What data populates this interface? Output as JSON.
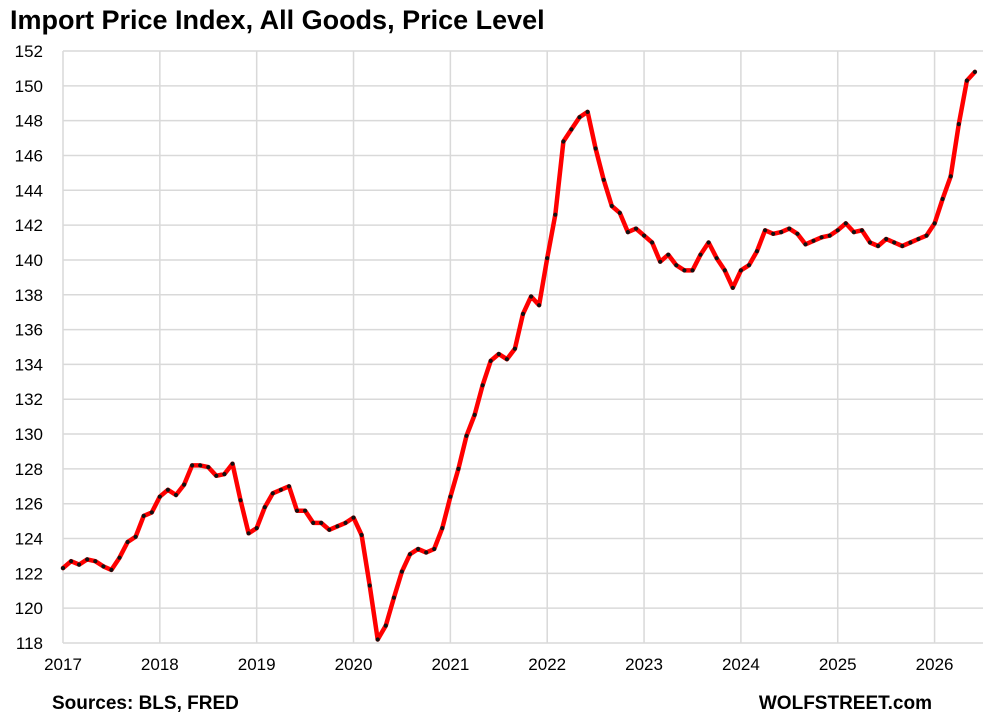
{
  "chart_data": {
    "type": "line",
    "title": "Import Price Index, All Goods, Price Level",
    "xlabel": "",
    "ylabel": "",
    "xlim": [
      2017,
      2026.5
    ],
    "ylim": [
      118,
      152
    ],
    "yticks": [
      118,
      120,
      122,
      124,
      126,
      128,
      130,
      132,
      134,
      136,
      138,
      140,
      142,
      144,
      146,
      148,
      150,
      152
    ],
    "xticks": [
      "2017",
      "2018",
      "2019",
      "2020",
      "2021",
      "2022",
      "2023",
      "2024",
      "2025",
      "2026"
    ],
    "grid": true,
    "legend": "none",
    "series": [
      {
        "start": "2017-01",
        "frequency": "monthly",
        "values": [
          122.3,
          122.7,
          122.5,
          122.8,
          122.7,
          122.4,
          122.2,
          122.9,
          123.8,
          124.1,
          125.3,
          125.5,
          126.4,
          126.8,
          126.5,
          127.1,
          128.2,
          128.2,
          128.1,
          127.6,
          127.7,
          128.3,
          126.2,
          124.3,
          124.6,
          125.8,
          126.6,
          126.8,
          127.0,
          125.6,
          125.6,
          124.9,
          124.9,
          124.5,
          124.7,
          124.9,
          125.2,
          124.2,
          121.3,
          118.2,
          119.0,
          120.6,
          122.1,
          123.1,
          123.4,
          123.2,
          123.4,
          124.6,
          126.4,
          128.0,
          129.9,
          131.1,
          132.8,
          134.2,
          134.6,
          134.3,
          134.9,
          136.9,
          137.9,
          137.4,
          140.1,
          142.6,
          146.8,
          147.5,
          148.2,
          148.5,
          146.4,
          144.6,
          143.1,
          142.7,
          141.6,
          141.8,
          141.4,
          141.0,
          139.9,
          140.3,
          139.7,
          139.4,
          139.4,
          140.3,
          141.0,
          140.1,
          139.4,
          138.4,
          139.4,
          139.7,
          140.5,
          141.7,
          141.5,
          141.6,
          141.8,
          141.5,
          140.9,
          141.1,
          141.3,
          141.4,
          141.7,
          142.1,
          141.6,
          141.7,
          141.0,
          140.8,
          141.2,
          141.0,
          140.8,
          141.0,
          141.2,
          141.4,
          142.1,
          143.5,
          144.8,
          147.8,
          150.3,
          150.8
        ]
      }
    ],
    "colors": {
      "line": "#ff0000",
      "markers": "#111111",
      "grid": "#d9d9d9"
    }
  },
  "footer": {
    "source": "Sources: BLS, FRED",
    "brand": "WOLFSTREET.com"
  }
}
